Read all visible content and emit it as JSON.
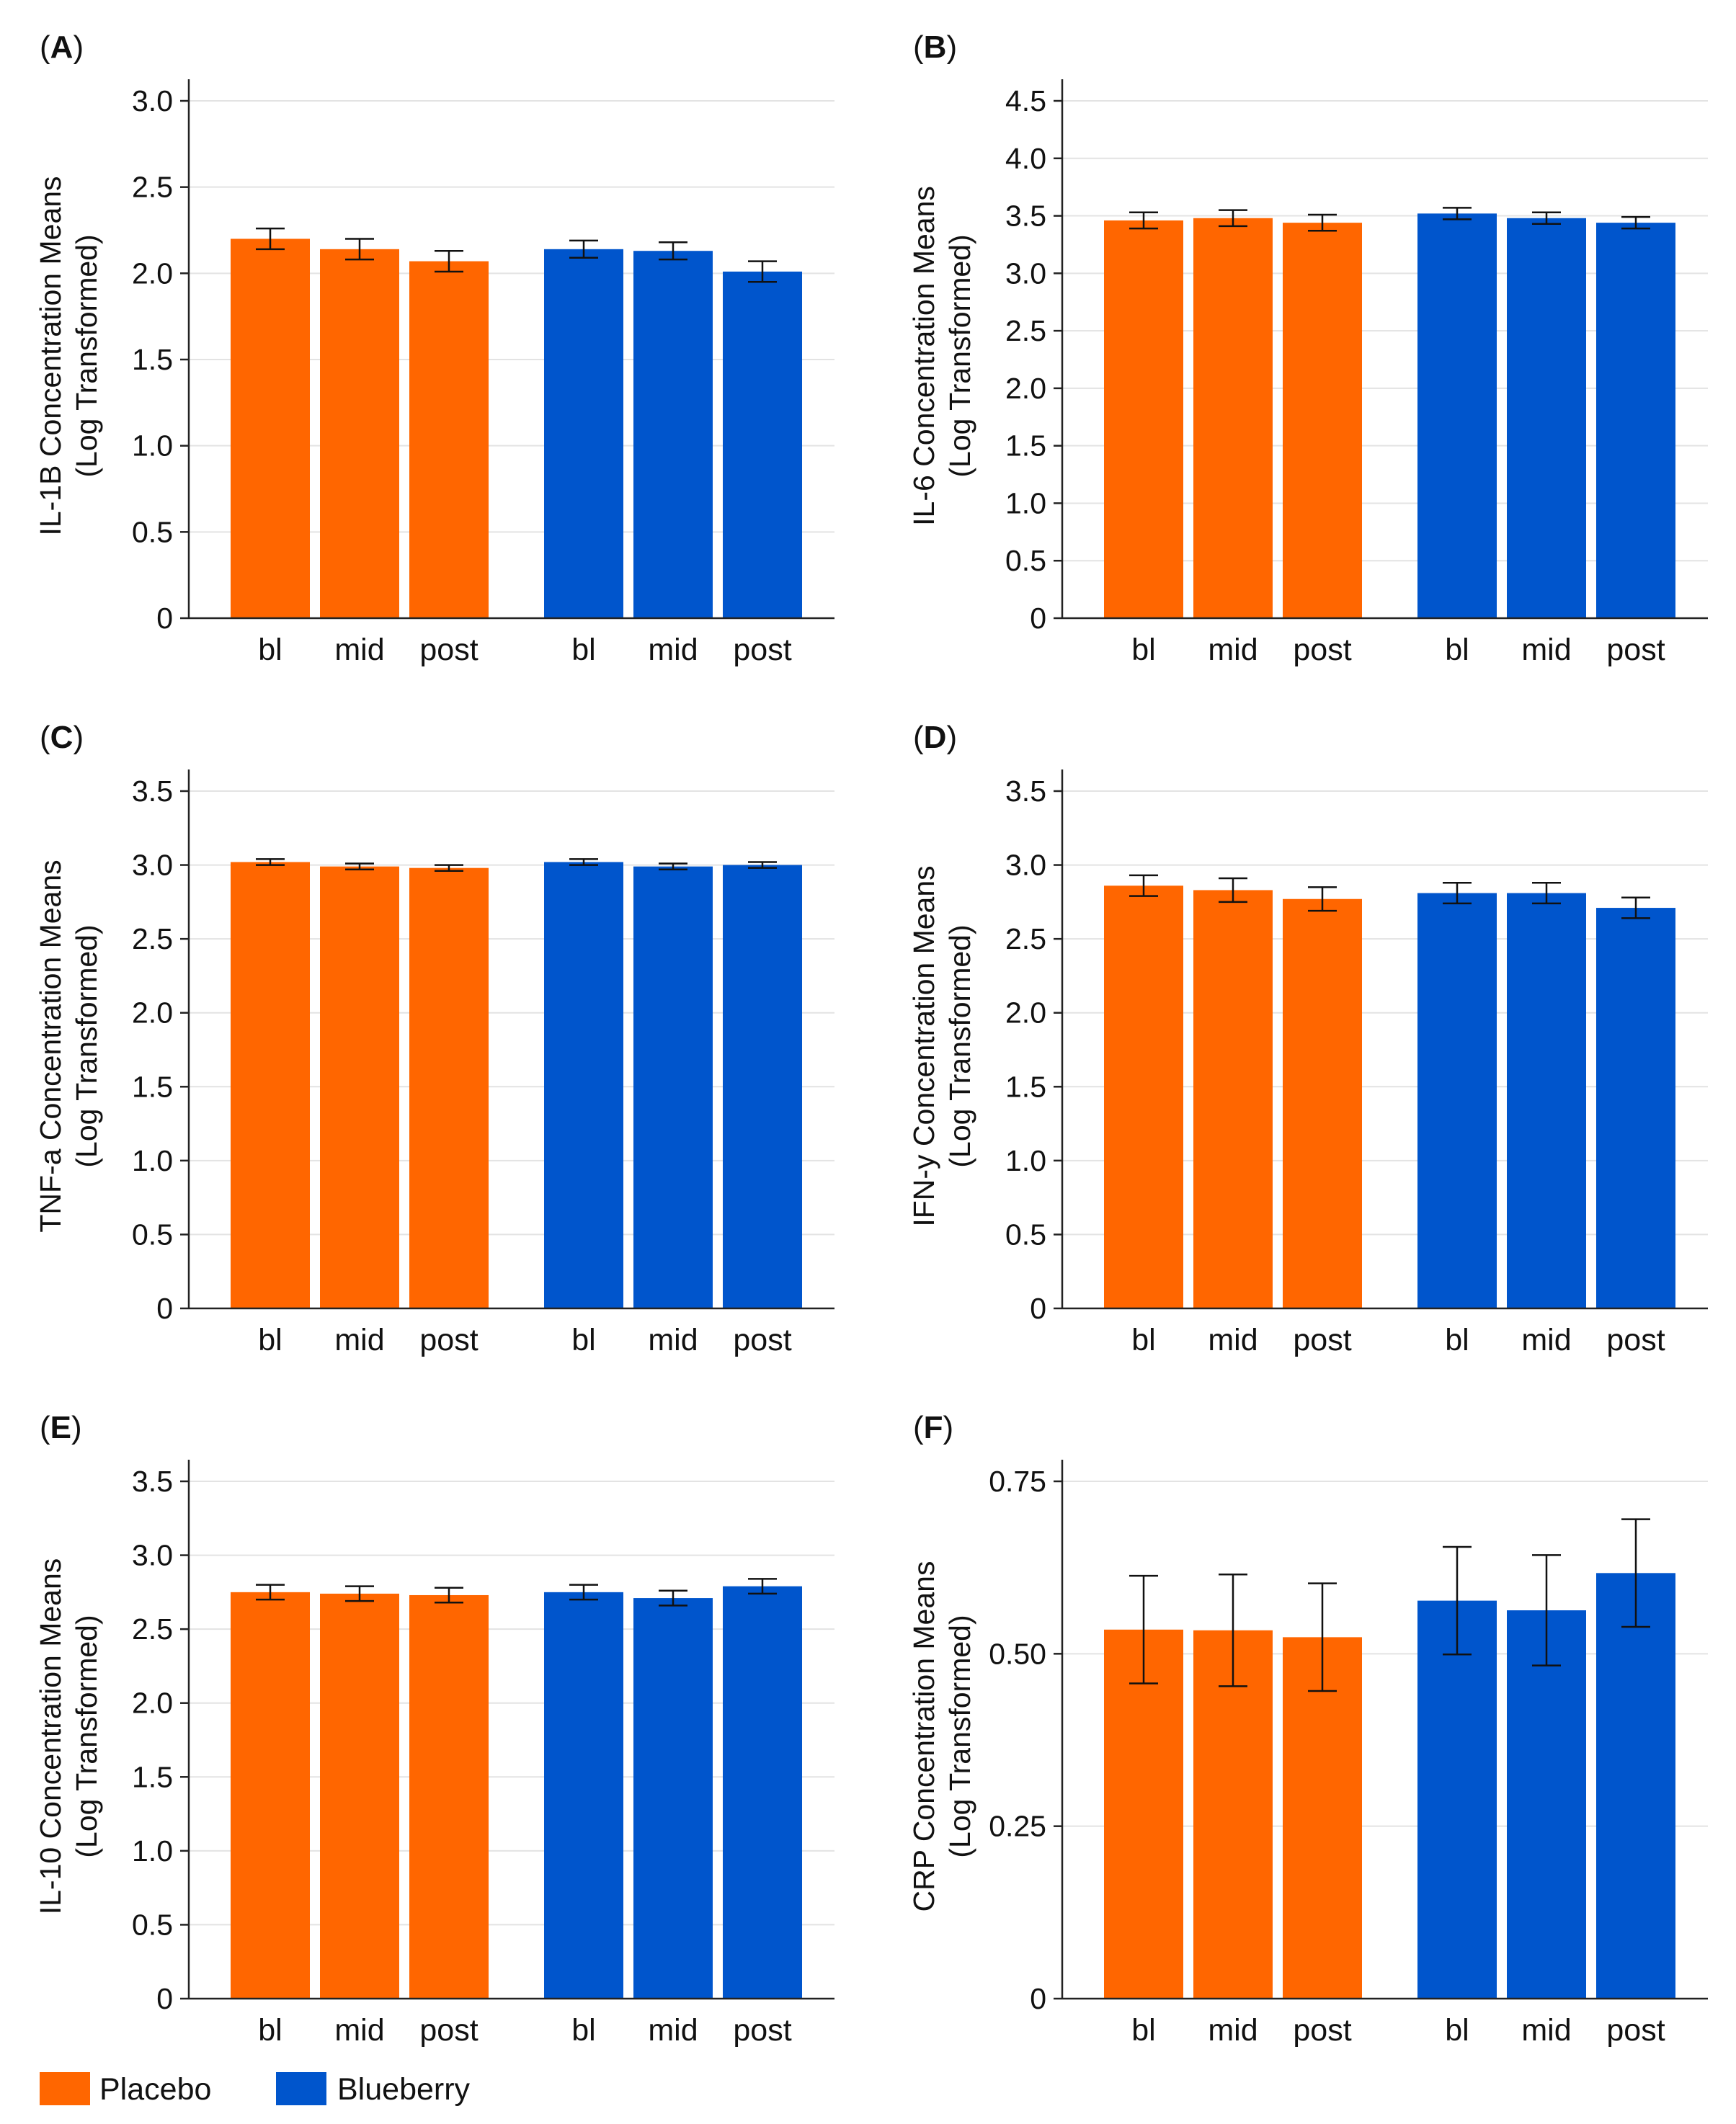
{
  "colors": {
    "placebo": "#FF6600",
    "blueberry": "#0055CC",
    "grid": "#E3E3E3",
    "axis": "#222222"
  },
  "legend": [
    {
      "key": "placebo",
      "label": "Placebo"
    },
    {
      "key": "blueberry",
      "label": "Blueberry"
    }
  ],
  "chart_data": [
    {
      "type": "bar",
      "panel": "A",
      "ylabel_line1": "IL-1B Concentration Means",
      "ylabel_line2": "(Log Transformed)",
      "ylim": [
        0,
        3.0
      ],
      "yticks": [
        0,
        0.5,
        1.0,
        1.5,
        2.0,
        2.5,
        3.0
      ],
      "ytick_labels": [
        "0",
        "0.5",
        "1.0",
        "1.5",
        "2.0",
        "2.5",
        "3.0"
      ],
      "categories": [
        "bl",
        "mid",
        "post"
      ],
      "series": [
        {
          "name": "Placebo",
          "key": "placebo",
          "values": [
            2.2,
            2.14,
            2.07
          ],
          "errors": [
            0.06,
            0.06,
            0.06
          ]
        },
        {
          "name": "Blueberry",
          "key": "blueberry",
          "values": [
            2.14,
            2.13,
            2.01
          ],
          "errors": [
            0.05,
            0.05,
            0.06
          ]
        }
      ]
    },
    {
      "type": "bar",
      "panel": "B",
      "ylabel_line1": "IL-6 Concentration Means",
      "ylabel_line2": "(Log Transformed)",
      "ylim": [
        0,
        4.5
      ],
      "yticks": [
        0,
        0.5,
        1.0,
        1.5,
        2.0,
        2.5,
        3.0,
        3.5,
        4.0,
        4.5
      ],
      "ytick_labels": [
        "0",
        "0.5",
        "1.0",
        "1.5",
        "2.0",
        "2.5",
        "3.0",
        "3.5",
        "4.0",
        "4.5"
      ],
      "categories": [
        "bl",
        "mid",
        "post"
      ],
      "series": [
        {
          "name": "Placebo",
          "key": "placebo",
          "values": [
            3.46,
            3.48,
            3.44
          ],
          "errors": [
            0.07,
            0.07,
            0.07
          ]
        },
        {
          "name": "Blueberry",
          "key": "blueberry",
          "values": [
            3.52,
            3.48,
            3.44
          ],
          "errors": [
            0.05,
            0.05,
            0.05
          ]
        }
      ]
    },
    {
      "type": "bar",
      "panel": "C",
      "ylabel_line1": "TNF-a Concentration Means",
      "ylabel_line2": "(Log Transformed)",
      "ylim": [
        0,
        3.5
      ],
      "yticks": [
        0,
        0.5,
        1.0,
        1.5,
        2.0,
        2.5,
        3.0,
        3.5
      ],
      "ytick_labels": [
        "0",
        "0.5",
        "1.0",
        "1.5",
        "2.0",
        "2.5",
        "3.0",
        "3.5"
      ],
      "categories": [
        "bl",
        "mid",
        "post"
      ],
      "series": [
        {
          "name": "Placebo",
          "key": "placebo",
          "values": [
            3.02,
            2.99,
            2.98
          ],
          "errors": [
            0.02,
            0.02,
            0.02
          ]
        },
        {
          "name": "Blueberry",
          "key": "blueberry",
          "values": [
            3.02,
            2.99,
            3.0
          ],
          "errors": [
            0.02,
            0.02,
            0.02
          ]
        }
      ]
    },
    {
      "type": "bar",
      "panel": "D",
      "ylabel_line1": "IFN-y Concentration Means",
      "ylabel_line2": "(Log Transformed)",
      "ylim": [
        0,
        3.5
      ],
      "yticks": [
        0,
        0.5,
        1.0,
        1.5,
        2.0,
        2.5,
        3.0,
        3.5
      ],
      "ytick_labels": [
        "0",
        "0.5",
        "1.0",
        "1.5",
        "2.0",
        "2.5",
        "3.0",
        "3.5"
      ],
      "categories": [
        "bl",
        "mid",
        "post"
      ],
      "series": [
        {
          "name": "Placebo",
          "key": "placebo",
          "values": [
            2.86,
            2.83,
            2.77
          ],
          "errors": [
            0.07,
            0.08,
            0.08
          ]
        },
        {
          "name": "Blueberry",
          "key": "blueberry",
          "values": [
            2.81,
            2.81,
            2.71
          ],
          "errors": [
            0.07,
            0.07,
            0.07
          ]
        }
      ]
    },
    {
      "type": "bar",
      "panel": "E",
      "ylabel_line1": "IL-10 Concentration Means",
      "ylabel_line2": "(Log Transformed)",
      "ylim": [
        0,
        3.5
      ],
      "yticks": [
        0,
        0.5,
        1.0,
        1.5,
        2.0,
        2.5,
        3.0,
        3.5
      ],
      "ytick_labels": [
        "0",
        "0.5",
        "1.0",
        "1.5",
        "2.0",
        "2.5",
        "3.0",
        "3.5"
      ],
      "categories": [
        "bl",
        "mid",
        "post"
      ],
      "series": [
        {
          "name": "Placebo",
          "key": "placebo",
          "values": [
            2.75,
            2.74,
            2.73
          ],
          "errors": [
            0.05,
            0.05,
            0.05
          ]
        },
        {
          "name": "Blueberry",
          "key": "blueberry",
          "values": [
            2.75,
            2.71,
            2.79
          ],
          "errors": [
            0.05,
            0.05,
            0.05
          ]
        }
      ]
    },
    {
      "type": "bar",
      "panel": "F",
      "ylabel_line1": "CRP Concentration Means",
      "ylabel_line2": "(Log Transformed)",
      "ylim": [
        0,
        0.75
      ],
      "yticks": [
        0,
        0.25,
        0.5,
        0.75
      ],
      "ytick_labels": [
        "0",
        "0.25",
        "0.50",
        "0.75"
      ],
      "categories": [
        "bl",
        "mid",
        "post"
      ],
      "series": [
        {
          "name": "Placebo",
          "key": "placebo",
          "values": [
            0.535,
            0.534,
            0.524
          ],
          "errors": [
            0.078,
            0.081,
            0.078
          ]
        },
        {
          "name": "Blueberry",
          "key": "blueberry",
          "values": [
            0.577,
            0.563,
            0.617
          ],
          "errors": [
            0.078,
            0.08,
            0.078
          ]
        }
      ]
    }
  ]
}
